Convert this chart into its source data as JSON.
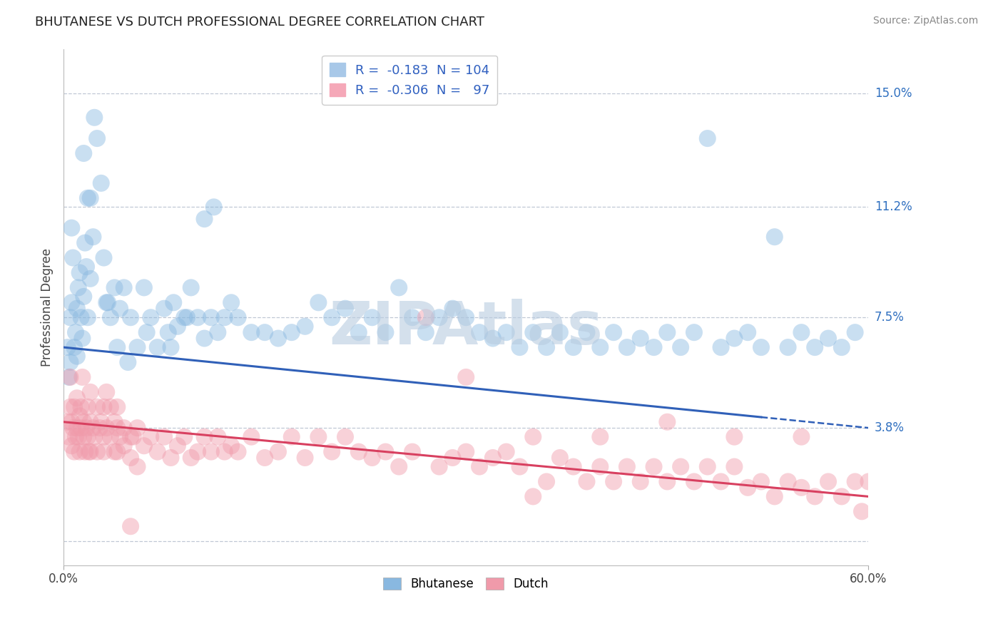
{
  "title": "BHUTANESE VS DUTCH PROFESSIONAL DEGREE CORRELATION CHART",
  "source": "Source: ZipAtlas.com",
  "ylabel_values": [
    0.0,
    3.8,
    7.5,
    11.2,
    15.0
  ],
  "ylabel_labels": [
    "",
    "3.8%",
    "7.5%",
    "11.2%",
    "15.0%"
  ],
  "xlim": [
    0.0,
    60.0
  ],
  "ylim": [
    -0.8,
    16.5
  ],
  "bhutanese_color": "#89b8e0",
  "dutch_color": "#f09aaa",
  "blue_line_color": "#3060b8",
  "pink_line_color": "#d84060",
  "watermark": "ZIPAtlas",
  "watermark_color": "#b8cce0",
  "bhutanese_points": [
    [
      0.3,
      6.5
    ],
    [
      0.4,
      5.5
    ],
    [
      0.5,
      7.5
    ],
    [
      0.5,
      6.0
    ],
    [
      0.6,
      8.0
    ],
    [
      0.7,
      9.5
    ],
    [
      0.8,
      6.5
    ],
    [
      0.9,
      7.0
    ],
    [
      1.0,
      7.8
    ],
    [
      1.0,
      6.2
    ],
    [
      1.1,
      8.5
    ],
    [
      1.2,
      9.0
    ],
    [
      1.3,
      7.5
    ],
    [
      1.4,
      6.8
    ],
    [
      1.5,
      8.2
    ],
    [
      1.6,
      10.0
    ],
    [
      1.7,
      9.2
    ],
    [
      1.8,
      7.5
    ],
    [
      2.0,
      8.8
    ],
    [
      2.0,
      11.5
    ],
    [
      2.2,
      10.2
    ],
    [
      2.5,
      13.5
    ],
    [
      2.8,
      12.0
    ],
    [
      3.0,
      9.5
    ],
    [
      3.2,
      8.0
    ],
    [
      3.5,
      7.5
    ],
    [
      3.8,
      8.5
    ],
    [
      4.0,
      6.5
    ],
    [
      4.2,
      7.8
    ],
    [
      4.5,
      8.5
    ],
    [
      5.0,
      7.5
    ],
    [
      5.5,
      6.5
    ],
    [
      6.0,
      8.5
    ],
    [
      6.5,
      7.5
    ],
    [
      7.0,
      6.5
    ],
    [
      7.5,
      7.8
    ],
    [
      8.0,
      6.5
    ],
    [
      8.5,
      7.2
    ],
    [
      9.0,
      7.5
    ],
    [
      9.5,
      8.5
    ],
    [
      10.0,
      7.5
    ],
    [
      10.5,
      6.8
    ],
    [
      11.0,
      7.5
    ],
    [
      11.5,
      7.0
    ],
    [
      12.0,
      7.5
    ],
    [
      12.5,
      8.0
    ],
    [
      13.0,
      7.5
    ],
    [
      14.0,
      7.0
    ],
    [
      15.0,
      7.0
    ],
    [
      16.0,
      6.8
    ],
    [
      17.0,
      7.0
    ],
    [
      18.0,
      7.2
    ],
    [
      19.0,
      8.0
    ],
    [
      20.0,
      7.5
    ],
    [
      21.0,
      7.8
    ],
    [
      22.0,
      7.0
    ],
    [
      23.0,
      7.5
    ],
    [
      24.0,
      7.0
    ],
    [
      25.0,
      8.5
    ],
    [
      26.0,
      7.5
    ],
    [
      27.0,
      7.0
    ],
    [
      28.0,
      7.5
    ],
    [
      29.0,
      7.8
    ],
    [
      30.0,
      7.5
    ],
    [
      31.0,
      7.0
    ],
    [
      32.0,
      6.8
    ],
    [
      33.0,
      7.0
    ],
    [
      34.0,
      6.5
    ],
    [
      35.0,
      7.0
    ],
    [
      36.0,
      6.5
    ],
    [
      37.0,
      7.0
    ],
    [
      38.0,
      6.5
    ],
    [
      39.0,
      7.0
    ],
    [
      40.0,
      6.5
    ],
    [
      41.0,
      7.0
    ],
    [
      42.0,
      6.5
    ],
    [
      43.0,
      6.8
    ],
    [
      44.0,
      6.5
    ],
    [
      45.0,
      7.0
    ],
    [
      46.0,
      6.5
    ],
    [
      47.0,
      7.0
    ],
    [
      48.0,
      13.5
    ],
    [
      49.0,
      6.5
    ],
    [
      50.0,
      6.8
    ],
    [
      51.0,
      7.0
    ],
    [
      52.0,
      6.5
    ],
    [
      53.0,
      10.2
    ],
    [
      54.0,
      6.5
    ],
    [
      55.0,
      7.0
    ],
    [
      56.0,
      6.5
    ],
    [
      57.0,
      6.8
    ],
    [
      58.0,
      6.5
    ],
    [
      59.0,
      7.0
    ],
    [
      1.5,
      13.0
    ],
    [
      2.3,
      14.2
    ],
    [
      4.8,
      6.0
    ],
    [
      6.2,
      7.0
    ],
    [
      3.3,
      8.0
    ],
    [
      7.8,
      7.0
    ],
    [
      8.2,
      8.0
    ],
    [
      9.2,
      7.5
    ],
    [
      0.6,
      10.5
    ],
    [
      1.8,
      11.5
    ],
    [
      10.5,
      10.8
    ],
    [
      11.2,
      11.2
    ]
  ],
  "dutch_points": [
    [
      0.3,
      4.0
    ],
    [
      0.4,
      3.5
    ],
    [
      0.5,
      4.5
    ],
    [
      0.5,
      5.5
    ],
    [
      0.6,
      3.2
    ],
    [
      0.6,
      4.0
    ],
    [
      0.7,
      3.8
    ],
    [
      0.8,
      4.5
    ],
    [
      0.8,
      3.0
    ],
    [
      0.9,
      3.5
    ],
    [
      1.0,
      4.8
    ],
    [
      1.0,
      3.8
    ],
    [
      1.1,
      3.5
    ],
    [
      1.2,
      4.2
    ],
    [
      1.2,
      3.0
    ],
    [
      1.3,
      3.8
    ],
    [
      1.3,
      4.5
    ],
    [
      1.4,
      5.5
    ],
    [
      1.5,
      4.0
    ],
    [
      1.5,
      3.5
    ],
    [
      1.6,
      3.0
    ],
    [
      1.7,
      3.8
    ],
    [
      1.8,
      4.5
    ],
    [
      1.8,
      3.5
    ],
    [
      1.9,
      3.0
    ],
    [
      2.0,
      4.0
    ],
    [
      2.0,
      5.0
    ],
    [
      2.2,
      3.8
    ],
    [
      2.3,
      3.5
    ],
    [
      2.5,
      4.5
    ],
    [
      2.5,
      3.0
    ],
    [
      2.7,
      3.8
    ],
    [
      2.8,
      4.0
    ],
    [
      3.0,
      3.5
    ],
    [
      3.0,
      4.5
    ],
    [
      3.2,
      3.8
    ],
    [
      3.2,
      5.0
    ],
    [
      3.5,
      3.5
    ],
    [
      3.5,
      4.5
    ],
    [
      3.8,
      3.0
    ],
    [
      3.8,
      4.0
    ],
    [
      4.0,
      3.8
    ],
    [
      4.0,
      4.5
    ],
    [
      4.2,
      3.5
    ],
    [
      4.5,
      3.8
    ],
    [
      4.5,
      3.2
    ],
    [
      5.0,
      3.5
    ],
    [
      5.0,
      2.8
    ],
    [
      5.2,
      3.5
    ],
    [
      5.5,
      3.8
    ],
    [
      5.5,
      2.5
    ],
    [
      6.0,
      3.2
    ],
    [
      6.5,
      3.5
    ],
    [
      7.0,
      3.0
    ],
    [
      7.5,
      3.5
    ],
    [
      8.0,
      2.8
    ],
    [
      8.5,
      3.2
    ],
    [
      9.0,
      3.5
    ],
    [
      9.5,
      2.8
    ],
    [
      10.0,
      3.0
    ],
    [
      10.5,
      3.5
    ],
    [
      11.0,
      3.0
    ],
    [
      11.5,
      3.5
    ],
    [
      12.0,
      3.0
    ],
    [
      12.5,
      3.2
    ],
    [
      13.0,
      3.0
    ],
    [
      14.0,
      3.5
    ],
    [
      15.0,
      2.8
    ],
    [
      16.0,
      3.0
    ],
    [
      17.0,
      3.5
    ],
    [
      18.0,
      2.8
    ],
    [
      19.0,
      3.5
    ],
    [
      20.0,
      3.0
    ],
    [
      21.0,
      3.5
    ],
    [
      22.0,
      3.0
    ],
    [
      23.0,
      2.8
    ],
    [
      24.0,
      3.0
    ],
    [
      25.0,
      2.5
    ],
    [
      26.0,
      3.0
    ],
    [
      27.0,
      7.5
    ],
    [
      28.0,
      2.5
    ],
    [
      29.0,
      2.8
    ],
    [
      30.0,
      3.0
    ],
    [
      31.0,
      2.5
    ],
    [
      32.0,
      2.8
    ],
    [
      33.0,
      3.0
    ],
    [
      34.0,
      2.5
    ],
    [
      35.0,
      3.5
    ],
    [
      36.0,
      2.0
    ],
    [
      37.0,
      2.8
    ],
    [
      38.0,
      2.5
    ],
    [
      39.0,
      2.0
    ],
    [
      40.0,
      2.5
    ],
    [
      41.0,
      2.0
    ],
    [
      42.0,
      2.5
    ],
    [
      43.0,
      2.0
    ],
    [
      44.0,
      2.5
    ],
    [
      45.0,
      2.0
    ],
    [
      46.0,
      2.5
    ],
    [
      47.0,
      2.0
    ],
    [
      48.0,
      2.5
    ],
    [
      49.0,
      2.0
    ],
    [
      50.0,
      2.5
    ],
    [
      51.0,
      1.8
    ],
    [
      52.0,
      2.0
    ],
    [
      53.0,
      1.5
    ],
    [
      54.0,
      2.0
    ],
    [
      55.0,
      1.8
    ],
    [
      56.0,
      1.5
    ],
    [
      57.0,
      2.0
    ],
    [
      58.0,
      1.5
    ],
    [
      59.0,
      2.0
    ],
    [
      59.5,
      1.0
    ],
    [
      30.0,
      5.5
    ],
    [
      45.0,
      4.0
    ],
    [
      40.0,
      3.5
    ],
    [
      50.0,
      3.5
    ],
    [
      2.0,
      3.0
    ],
    [
      3.0,
      3.0
    ],
    [
      4.0,
      3.0
    ],
    [
      5.0,
      0.5
    ],
    [
      35.0,
      1.5
    ],
    [
      55.0,
      3.5
    ],
    [
      60.0,
      2.0
    ]
  ],
  "blue_line_x0": 0,
  "blue_line_y0": 6.5,
  "blue_line_x1": 60,
  "blue_line_y1": 3.8,
  "blue_solid_end": 52,
  "pink_line_x0": 0,
  "pink_line_y0": 4.0,
  "pink_line_x1": 60,
  "pink_line_y1": 1.5,
  "bottom_legend": [
    "Bhutanese",
    "Dutch"
  ]
}
